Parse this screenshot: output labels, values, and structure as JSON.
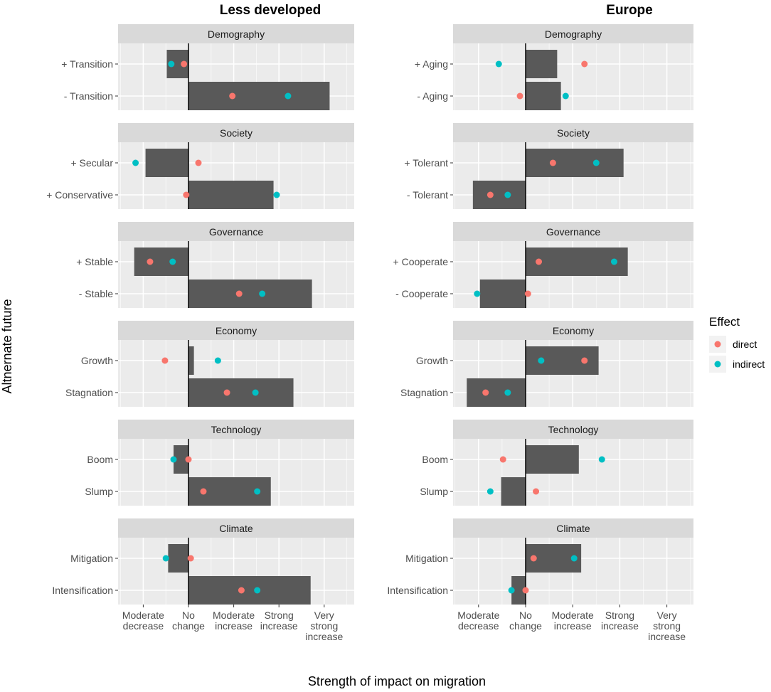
{
  "chart_data": {
    "type": "bar",
    "subtype": "faceted horizontal bar with point overlays",
    "column_titles": [
      "Less developed",
      "Europe"
    ],
    "ylabel": "Altnernate future",
    "xlabel": "Strength of impact on migration",
    "x_range": [
      -1.6,
      3.5
    ],
    "x_ticks": [
      {
        "value": -1,
        "lines": [
          "Moderate",
          "decrease"
        ]
      },
      {
        "value": 0,
        "lines": [
          "No",
          "change"
        ]
      },
      {
        "value": 1,
        "lines": [
          "Moderate",
          "increase"
        ]
      },
      {
        "value": 2,
        "lines": [
          "Strong",
          "increase"
        ]
      },
      {
        "value": 3,
        "lines": [
          "Very",
          "strong",
          "increase"
        ]
      }
    ],
    "legend": {
      "title": "Effect",
      "position": "right",
      "entries": [
        {
          "label": "direct",
          "color": "#F8766D"
        },
        {
          "label": "indirect",
          "color": "#00BFC4"
        }
      ]
    },
    "colors": {
      "bar": "#595959",
      "panel": "#EBEBEB",
      "strip": "#D9D9D9",
      "direct": "#F8766D",
      "indirect": "#00BFC4"
    },
    "panels": [
      {
        "column": "Less developed",
        "facets": [
          {
            "name": "Demography",
            "rows": [
              {
                "label": "+ Transition",
                "bar": -0.48,
                "direct": -0.1,
                "indirect": -0.38
              },
              {
                "label": "- Transition",
                "bar": 3.12,
                "direct": 0.97,
                "indirect": 2.2
              }
            ]
          },
          {
            "name": "Society",
            "rows": [
              {
                "label": "+ Secular",
                "bar": -0.95,
                "direct": 0.22,
                "indirect": -1.17
              },
              {
                "label": "+ Conservative",
                "bar": 1.88,
                "direct": -0.05,
                "indirect": 1.95
              }
            ]
          },
          {
            "name": "Governance",
            "rows": [
              {
                "label": "+ Stable",
                "bar": -1.2,
                "direct": -0.85,
                "indirect": -0.35
              },
              {
                "label": "- Stable",
                "bar": 2.73,
                "direct": 1.12,
                "indirect": 1.63
              }
            ]
          },
          {
            "name": "Economy",
            "rows": [
              {
                "label": "Growth",
                "bar": 0.12,
                "direct": -0.52,
                "indirect": 0.65
              },
              {
                "label": "Stagnation",
                "bar": 2.32,
                "direct": 0.85,
                "indirect": 1.48
              }
            ]
          },
          {
            "name": "Technology",
            "rows": [
              {
                "label": "Boom",
                "bar": -0.33,
                "direct": 0.0,
                "indirect": -0.33
              },
              {
                "label": "Slump",
                "bar": 1.82,
                "direct": 0.33,
                "indirect": 1.52
              }
            ]
          },
          {
            "name": "Climate",
            "rows": [
              {
                "label": "Mitigation",
                "bar": -0.45,
                "direct": 0.05,
                "indirect": -0.5
              },
              {
                "label": "Intensification",
                "bar": 2.7,
                "direct": 1.17,
                "indirect": 1.52
              }
            ]
          }
        ]
      },
      {
        "column": "Europe",
        "facets": [
          {
            "name": "Demography",
            "rows": [
              {
                "label": "+ Aging",
                "bar": 0.67,
                "direct": 1.25,
                "indirect": -0.57
              },
              {
                "label": "- Aging",
                "bar": 0.75,
                "direct": -0.12,
                "indirect": 0.85
              }
            ]
          },
          {
            "name": "Society",
            "rows": [
              {
                "label": "+ Tolerant",
                "bar": 2.08,
                "direct": 0.58,
                "indirect": 1.5
              },
              {
                "label": "- Tolerant",
                "bar": -1.12,
                "direct": -0.75,
                "indirect": -0.38
              }
            ]
          },
          {
            "name": "Governance",
            "rows": [
              {
                "label": "+ Cooperate",
                "bar": 2.17,
                "direct": 0.28,
                "indirect": 1.88
              },
              {
                "label": "- Cooperate",
                "bar": -0.97,
                "direct": 0.05,
                "indirect": -1.03
              }
            ]
          },
          {
            "name": "Economy",
            "rows": [
              {
                "label": "Growth",
                "bar": 1.55,
                "direct": 1.25,
                "indirect": 0.33
              },
              {
                "label": "Stagnation",
                "bar": -1.25,
                "direct": -0.85,
                "indirect": -0.38
              }
            ]
          },
          {
            "name": "Technology",
            "rows": [
              {
                "label": "Boom",
                "bar": 1.13,
                "direct": -0.48,
                "indirect": 1.62
              },
              {
                "label": "Slump",
                "bar": -0.52,
                "direct": 0.22,
                "indirect": -0.75
              }
            ]
          },
          {
            "name": "Climate",
            "rows": [
              {
                "label": "Mitigation",
                "bar": 1.18,
                "direct": 0.17,
                "indirect": 1.03
              },
              {
                "label": "Intensification",
                "bar": -0.3,
                "direct": 0.0,
                "indirect": -0.3
              }
            ]
          }
        ]
      }
    ]
  }
}
